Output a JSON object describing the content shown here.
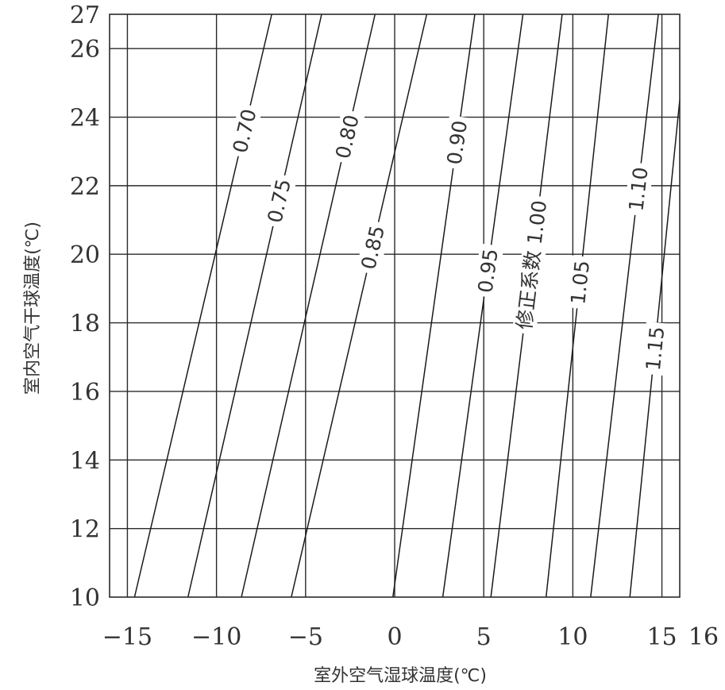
{
  "chart_data": {
    "type": "line",
    "xlabel": "室外空气湿球温度(℃)",
    "ylabel": "室内空气干球温度(℃)",
    "xlim": [
      -16,
      16
    ],
    "ylim": [
      10,
      27
    ],
    "x_ticks": [
      -15,
      -10,
      -5,
      0,
      5,
      10,
      15,
      16
    ],
    "y_ticks": [
      10,
      12,
      14,
      16,
      18,
      20,
      22,
      24,
      26,
      27
    ],
    "grid": true,
    "series": [
      {
        "name": "0.70",
        "x": [
          -14.6,
          -6.9
        ],
        "y": [
          10,
          27
        ]
      },
      {
        "name": "0.75",
        "x": [
          -11.6,
          -4.1
        ],
        "y": [
          10,
          27
        ]
      },
      {
        "name": "0.80",
        "x": [
          -8.6,
          -1.1
        ],
        "y": [
          10,
          27
        ]
      },
      {
        "name": "0.85",
        "x": [
          -5.8,
          1.8
        ],
        "y": [
          10,
          27
        ]
      },
      {
        "name": "0.90",
        "x": [
          -0.1,
          4.5
        ],
        "y": [
          10,
          27
        ]
      },
      {
        "name": "0.95",
        "x": [
          2.7,
          7.2
        ],
        "y": [
          10,
          27
        ]
      },
      {
        "name": "修正系数 1.00",
        "x": [
          5.4,
          9.4
        ],
        "y": [
          10,
          27
        ]
      },
      {
        "name": "1.05",
        "x": [
          8.5,
          12.0
        ],
        "y": [
          10,
          27
        ]
      },
      {
        "name": "1.10",
        "x": [
          11.0,
          14.8
        ],
        "y": [
          10,
          27
        ]
      },
      {
        "name": "1.15",
        "x": [
          13.2,
          16.0
        ],
        "y": [
          10,
          24.5
        ]
      }
    ]
  }
}
